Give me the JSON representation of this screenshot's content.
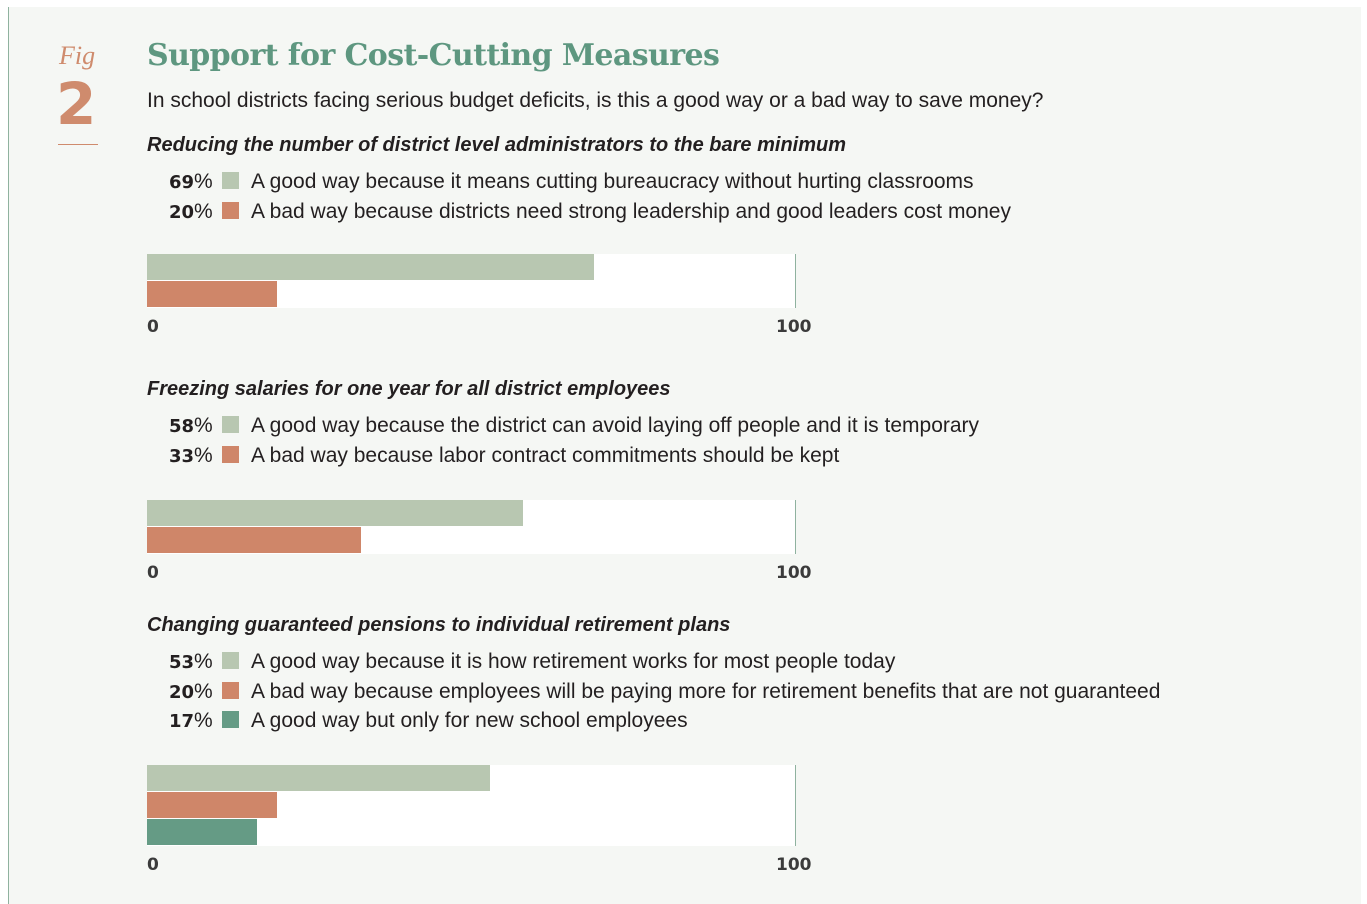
{
  "figure": {
    "label": "Fig",
    "number": "2"
  },
  "chart_data": {
    "type": "bar",
    "orientation": "horizontal",
    "title": "Support for Cost-Cutting Measures",
    "subtitle": "In school districts facing serious budget deficits, is this a good way or a bad way to save money?",
    "xlim": [
      0,
      100
    ],
    "ticks": [
      "0",
      "100"
    ],
    "colors": {
      "good": "#b8c7b1",
      "bad": "#cf8669",
      "new": "#659b85"
    },
    "questions": [
      {
        "title": "Reducing the number of district level administrators to the bare minimum",
        "responses": [
          {
            "value": 69,
            "pct_text": "69",
            "pct_sign": "%",
            "label": "A good way because it means cutting bureaucracy without hurting classrooms",
            "color": "#b8c7b1"
          },
          {
            "value": 20,
            "pct_text": "20",
            "pct_sign": "%",
            "label": "A bad way because districts need strong leadership and good leaders cost money",
            "color": "#cf8669"
          }
        ]
      },
      {
        "title": "Freezing salaries for one year for all district employees",
        "responses": [
          {
            "value": 58,
            "pct_text": "58",
            "pct_sign": "%",
            "label": "A good way because the district can avoid laying off people and it is temporary",
            "color": "#b8c7b1"
          },
          {
            "value": 33,
            "pct_text": "33",
            "pct_sign": "%",
            "label": "A bad way because labor contract commitments should be kept",
            "color": "#cf8669"
          }
        ]
      },
      {
        "title": "Changing guaranteed pensions to individual retirement plans",
        "responses": [
          {
            "value": 53,
            "pct_text": "53",
            "pct_sign": "%",
            "label": "A good way because it is how retirement works for most people today",
            "color": "#b8c7b1"
          },
          {
            "value": 20,
            "pct_text": "20",
            "pct_sign": "%",
            "label": "A bad way because employees will be paying more for retirement benefits that are not guaranteed",
            "color": "#cf8669"
          },
          {
            "value": 17,
            "pct_text": "17",
            "pct_sign": "%",
            "label": "A good way but only for new school employees",
            "color": "#659b85"
          }
        ]
      }
    ]
  }
}
